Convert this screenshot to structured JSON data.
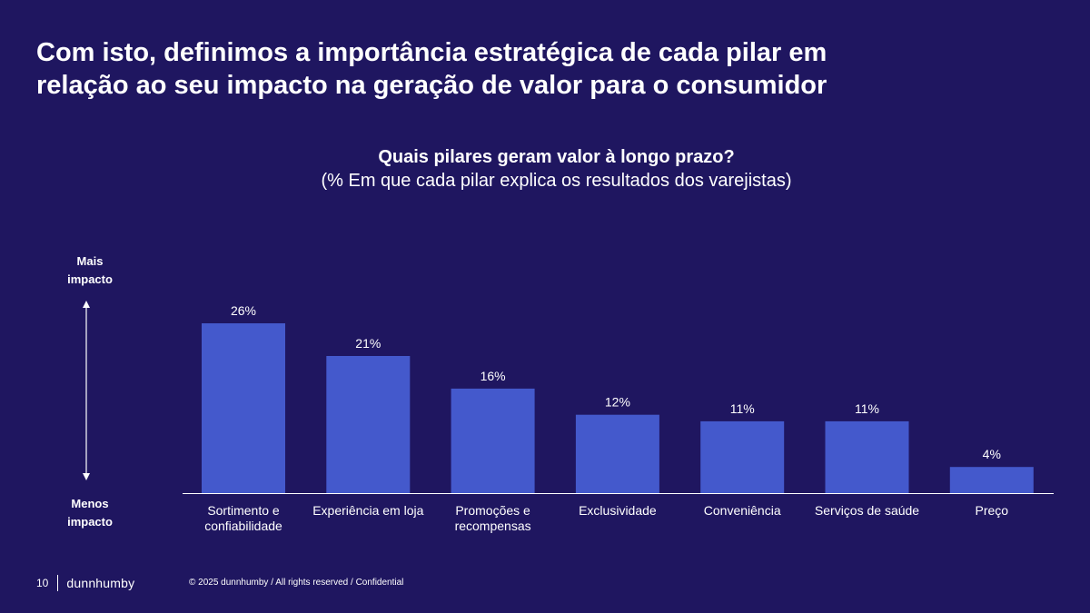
{
  "slide": {
    "title_lines": [
      "Com isto, definimos a importância estratégica de cada pilar em",
      "relação ao seu impacto na geração de valor para o consumidor"
    ],
    "axis_top_lines": [
      "Mais",
      "impacto"
    ],
    "axis_bottom_lines": [
      "Menos",
      "impacto"
    ],
    "page_number": "10",
    "brand": "dunnhumby",
    "copyright": "© 2025 dunnhumby / All rights reserved / Confidential"
  },
  "chart_data": {
    "type": "bar",
    "title": "Quais pilares geram valor à longo prazo?",
    "subtitle": "(% Em que cada pilar explica os resultados dos varejistas)",
    "categories": [
      "Sortimento e confiabilidade",
      "Experiência em loja",
      "Promoções e recompensas",
      "Exclusividade",
      "Conveniência",
      "Serviços de saúde",
      "Preço"
    ],
    "category_label_lines": [
      [
        "Sortimento e",
        "confiabilidade"
      ],
      [
        "Experiência em loja"
      ],
      [
        "Promoções e",
        "recompensas"
      ],
      [
        "Exclusividade"
      ],
      [
        "Conveniência"
      ],
      [
        "Serviços de saúde"
      ],
      [
        "Preço"
      ]
    ],
    "values": [
      26,
      21,
      16,
      12,
      11,
      11,
      4
    ],
    "data_labels": [
      "26%",
      "21%",
      "16%",
      "12%",
      "11%",
      "11%",
      "4%"
    ],
    "ylim": [
      0,
      26
    ],
    "grid": false,
    "legend": "none",
    "bar_color": "#4459cc",
    "axis_color": "#ffffff"
  }
}
